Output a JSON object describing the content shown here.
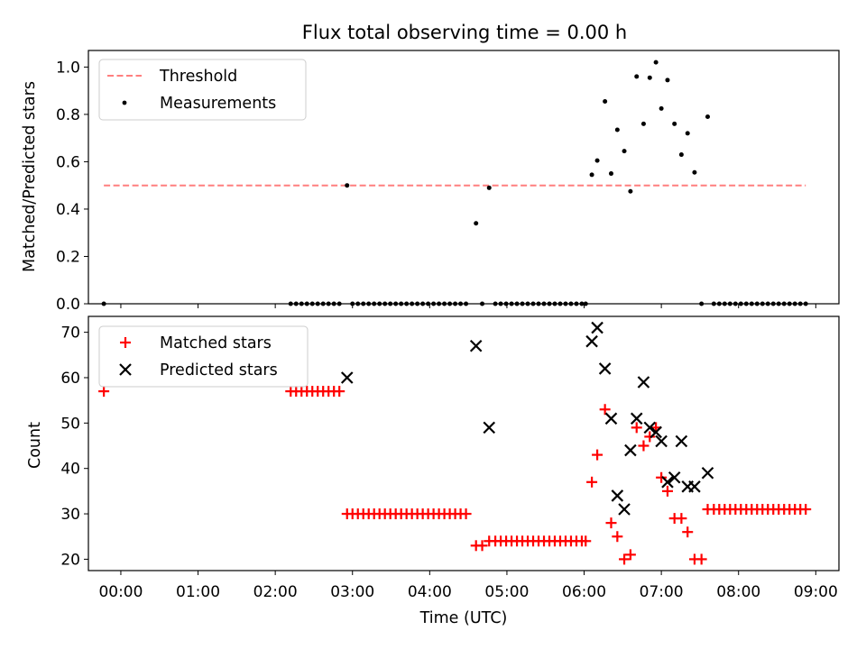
{
  "chart_data": [
    {
      "type": "scatter",
      "title": "Flux total observing time = 0.00 h",
      "xlabel": "",
      "ylabel": "Matched/Predicted stars",
      "xlim": [
        -0.42,
        9.3
      ],
      "ylim": [
        0.0,
        1.07
      ],
      "yticks": [
        0.0,
        0.2,
        0.4,
        0.6,
        0.8,
        1.0
      ],
      "ytick_labels": [
        "0.0",
        "0.2",
        "0.4",
        "0.6",
        "0.8",
        "1.0"
      ],
      "threshold": {
        "name": "Threshold",
        "y": 0.5,
        "x": [
          -0.22,
          8.87
        ],
        "color": "#ff7f7f"
      },
      "legend": [
        "Threshold",
        "Measurements"
      ],
      "series": [
        {
          "name": "Measurements",
          "color": "#000000",
          "points": [
            [
              -0.22,
              0.0
            ],
            [
              2.2,
              0.0
            ],
            [
              2.27,
              0.0
            ],
            [
              2.34,
              0.0
            ],
            [
              2.41,
              0.0
            ],
            [
              2.48,
              0.0
            ],
            [
              2.55,
              0.0
            ],
            [
              2.62,
              0.0
            ],
            [
              2.69,
              0.0
            ],
            [
              2.76,
              0.0
            ],
            [
              2.83,
              0.0
            ],
            [
              2.93,
              0.5
            ],
            [
              3.0,
              0.0
            ],
            [
              3.07,
              0.0
            ],
            [
              3.14,
              0.0
            ],
            [
              3.21,
              0.0
            ],
            [
              3.28,
              0.0
            ],
            [
              3.35,
              0.0
            ],
            [
              3.42,
              0.0
            ],
            [
              3.49,
              0.0
            ],
            [
              3.56,
              0.0
            ],
            [
              3.63,
              0.0
            ],
            [
              3.7,
              0.0
            ],
            [
              3.77,
              0.0
            ],
            [
              3.84,
              0.0
            ],
            [
              3.91,
              0.0
            ],
            [
              3.98,
              0.0
            ],
            [
              4.05,
              0.0
            ],
            [
              4.12,
              0.0
            ],
            [
              4.19,
              0.0
            ],
            [
              4.26,
              0.0
            ],
            [
              4.33,
              0.0
            ],
            [
              4.4,
              0.0
            ],
            [
              4.47,
              0.0
            ],
            [
              4.6,
              0.34
            ],
            [
              4.68,
              0.0
            ],
            [
              4.77,
              0.49
            ],
            [
              4.85,
              0.0
            ],
            [
              4.92,
              0.0
            ],
            [
              4.99,
              0.0
            ],
            [
              5.06,
              0.0
            ],
            [
              5.13,
              0.0
            ],
            [
              5.2,
              0.0
            ],
            [
              5.27,
              0.0
            ],
            [
              5.34,
              0.0
            ],
            [
              5.41,
              0.0
            ],
            [
              5.48,
              0.0
            ],
            [
              5.55,
              0.0
            ],
            [
              5.62,
              0.0
            ],
            [
              5.69,
              0.0
            ],
            [
              5.76,
              0.0
            ],
            [
              5.83,
              0.0
            ],
            [
              5.9,
              0.0
            ],
            [
              5.97,
              0.0
            ],
            [
              6.02,
              0.0
            ],
            [
              6.1,
              0.545
            ],
            [
              6.17,
              0.605
            ],
            [
              6.27,
              0.855
            ],
            [
              6.35,
              0.55
            ],
            [
              6.43,
              0.735
            ],
            [
              6.52,
              0.645
            ],
            [
              6.6,
              0.475
            ],
            [
              6.68,
              0.96
            ],
            [
              6.77,
              0.76
            ],
            [
              6.85,
              0.955
            ],
            [
              6.93,
              1.02
            ],
            [
              7.0,
              0.825
            ],
            [
              7.08,
              0.945
            ],
            [
              7.17,
              0.76
            ],
            [
              7.26,
              0.63
            ],
            [
              7.34,
              0.72
            ],
            [
              7.43,
              0.555
            ],
            [
              7.6,
              0.79
            ],
            [
              7.52,
              0.0
            ],
            [
              7.68,
              0.0
            ],
            [
              7.75,
              0.0
            ],
            [
              7.82,
              0.0
            ],
            [
              7.89,
              0.0
            ],
            [
              7.96,
              0.0
            ],
            [
              8.03,
              0.0
            ],
            [
              8.1,
              0.0
            ],
            [
              8.17,
              0.0
            ],
            [
              8.24,
              0.0
            ],
            [
              8.31,
              0.0
            ],
            [
              8.38,
              0.0
            ],
            [
              8.45,
              0.0
            ],
            [
              8.52,
              0.0
            ],
            [
              8.59,
              0.0
            ],
            [
              8.66,
              0.0
            ],
            [
              8.73,
              0.0
            ],
            [
              8.8,
              0.0
            ],
            [
              8.87,
              0.0
            ]
          ]
        }
      ]
    },
    {
      "type": "scatter",
      "title": "",
      "xlabel": "Time (UTC)",
      "ylabel": "Count",
      "xlim": [
        -0.42,
        9.3
      ],
      "ylim": [
        17.5,
        73.5
      ],
      "xticks": [
        0,
        1,
        2,
        3,
        4,
        5,
        6,
        7,
        8,
        9
      ],
      "xtick_labels": [
        "00:00",
        "01:00",
        "02:00",
        "03:00",
        "04:00",
        "05:00",
        "06:00",
        "07:00",
        "08:00",
        "09:00"
      ],
      "yticks": [
        20,
        30,
        40,
        50,
        60,
        70
      ],
      "ytick_labels": [
        "20",
        "30",
        "40",
        "50",
        "60",
        "70"
      ],
      "legend": [
        "Matched stars",
        "Predicted stars"
      ],
      "series": [
        {
          "name": "Matched stars",
          "marker": "+",
          "color": "#ff0000",
          "points": [
            [
              -0.22,
              57
            ],
            [
              2.2,
              57
            ],
            [
              2.27,
              57
            ],
            [
              2.34,
              57
            ],
            [
              2.41,
              57
            ],
            [
              2.48,
              57
            ],
            [
              2.55,
              57
            ],
            [
              2.62,
              57
            ],
            [
              2.69,
              57
            ],
            [
              2.76,
              57
            ],
            [
              2.83,
              57
            ],
            [
              2.93,
              30
            ],
            [
              3.0,
              30
            ],
            [
              3.07,
              30
            ],
            [
              3.14,
              30
            ],
            [
              3.21,
              30
            ],
            [
              3.28,
              30
            ],
            [
              3.35,
              30
            ],
            [
              3.42,
              30
            ],
            [
              3.49,
              30
            ],
            [
              3.56,
              30
            ],
            [
              3.63,
              30
            ],
            [
              3.7,
              30
            ],
            [
              3.77,
              30
            ],
            [
              3.84,
              30
            ],
            [
              3.91,
              30
            ],
            [
              3.98,
              30
            ],
            [
              4.05,
              30
            ],
            [
              4.12,
              30
            ],
            [
              4.19,
              30
            ],
            [
              4.26,
              30
            ],
            [
              4.33,
              30
            ],
            [
              4.4,
              30
            ],
            [
              4.47,
              30
            ],
            [
              4.6,
              23
            ],
            [
              4.68,
              23
            ],
            [
              4.77,
              24
            ],
            [
              4.85,
              24
            ],
            [
              4.92,
              24
            ],
            [
              4.99,
              24
            ],
            [
              5.06,
              24
            ],
            [
              5.13,
              24
            ],
            [
              5.2,
              24
            ],
            [
              5.27,
              24
            ],
            [
              5.34,
              24
            ],
            [
              5.41,
              24
            ],
            [
              5.48,
              24
            ],
            [
              5.55,
              24
            ],
            [
              5.62,
              24
            ],
            [
              5.69,
              24
            ],
            [
              5.76,
              24
            ],
            [
              5.83,
              24
            ],
            [
              5.9,
              24
            ],
            [
              5.97,
              24
            ],
            [
              6.02,
              24
            ],
            [
              6.1,
              37
            ],
            [
              6.17,
              43
            ],
            [
              6.27,
              53
            ],
            [
              6.35,
              28
            ],
            [
              6.43,
              25
            ],
            [
              6.52,
              20
            ],
            [
              6.6,
              21
            ],
            [
              6.68,
              49
            ],
            [
              6.77,
              45
            ],
            [
              6.85,
              47
            ],
            [
              6.93,
              49
            ],
            [
              7.0,
              38
            ],
            [
              7.08,
              35
            ],
            [
              7.17,
              29
            ],
            [
              7.26,
              29
            ],
            [
              7.34,
              26
            ],
            [
              7.43,
              20
            ],
            [
              7.52,
              20
            ],
            [
              7.6,
              31
            ],
            [
              7.68,
              31
            ],
            [
              7.75,
              31
            ],
            [
              7.82,
              31
            ],
            [
              7.89,
              31
            ],
            [
              7.96,
              31
            ],
            [
              8.03,
              31
            ],
            [
              8.1,
              31
            ],
            [
              8.17,
              31
            ],
            [
              8.24,
              31
            ],
            [
              8.31,
              31
            ],
            [
              8.38,
              31
            ],
            [
              8.45,
              31
            ],
            [
              8.52,
              31
            ],
            [
              8.59,
              31
            ],
            [
              8.66,
              31
            ],
            [
              8.73,
              31
            ],
            [
              8.8,
              31
            ],
            [
              8.87,
              31
            ]
          ]
        },
        {
          "name": "Predicted stars",
          "marker": "x",
          "color": "#000000",
          "points": [
            [
              2.93,
              60
            ],
            [
              4.6,
              67
            ],
            [
              4.77,
              49
            ],
            [
              6.1,
              68
            ],
            [
              6.17,
              71
            ],
            [
              6.27,
              62
            ],
            [
              6.35,
              51
            ],
            [
              6.43,
              34
            ],
            [
              6.52,
              31
            ],
            [
              6.6,
              44
            ],
            [
              6.68,
              51
            ],
            [
              6.77,
              59
            ],
            [
              6.85,
              49
            ],
            [
              6.93,
              48
            ],
            [
              7.0,
              46
            ],
            [
              7.08,
              37
            ],
            [
              7.17,
              38
            ],
            [
              7.26,
              46
            ],
            [
              7.34,
              36
            ],
            [
              7.43,
              36
            ],
            [
              7.6,
              39
            ]
          ]
        }
      ]
    }
  ]
}
